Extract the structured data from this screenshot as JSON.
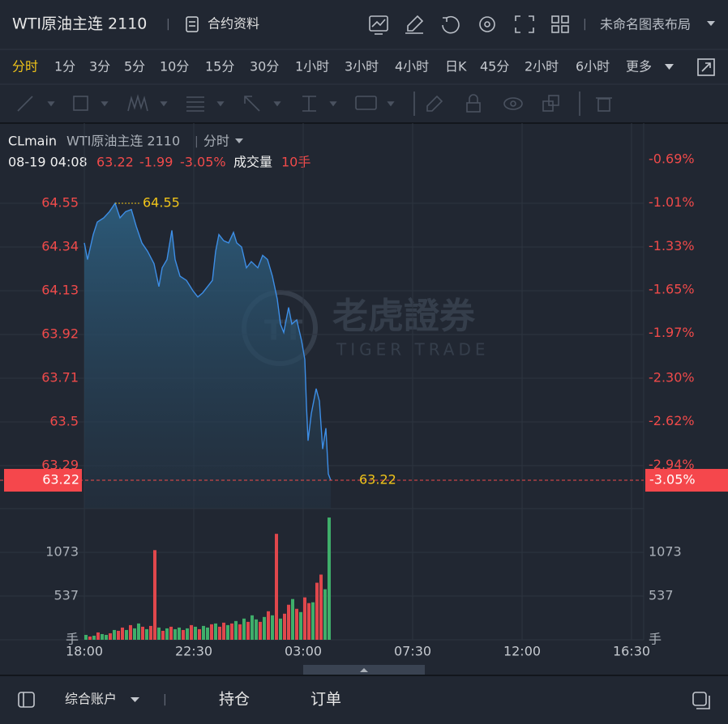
{
  "header": {
    "title": "WTI原油主连 2110",
    "contract_info": "合约资料",
    "layout": "未命名图表布局"
  },
  "timeframes": {
    "active": 0,
    "items": [
      "分时",
      "1分",
      "3分",
      "5分",
      "10分",
      "15分",
      "30分",
      "1小时",
      "3小时",
      "4小时",
      "日K",
      "45分",
      "2小时",
      "6小时",
      "更多"
    ]
  },
  "info": {
    "symbol": "CLmain",
    "name": "WTI原油主连 2110",
    "mode": "分时",
    "time": "08-19 04:08",
    "change": "-1.99",
    "volume_label": "成交量",
    "volume": "10手"
  },
  "watermark": {
    "cn": "老虎證券",
    "en": "TIGER TRADE"
  },
  "footer": {
    "account": "综合账户",
    "positions": "持仓",
    "orders": "订单"
  },
  "chart_data": {
    "type": "line",
    "x": [
      0,
      8,
      22,
      32,
      48,
      62,
      76,
      88,
      102,
      116,
      128,
      142,
      156,
      172,
      184,
      192,
      204,
      216,
      224,
      236,
      252,
      268,
      280,
      292,
      304,
      316,
      324,
      332,
      344,
      356,
      368,
      376,
      388,
      400,
      412,
      428,
      440,
      452,
      464,
      476,
      484,
      492,
      504,
      512,
      524,
      536,
      544,
      548,
      552,
      560,
      572,
      580,
      588,
      596,
      602,
      608
    ],
    "series": [
      {
        "color": "#3d8ee6",
        "values": [
          64.36,
          64.28,
          64.4,
          64.46,
          64.48,
          64.51,
          64.55,
          64.48,
          64.51,
          64.52,
          64.44,
          64.36,
          64.32,
          64.26,
          64.15,
          64.24,
          64.28,
          64.42,
          64.28,
          64.2,
          64.18,
          64.13,
          64.1,
          64.12,
          64.15,
          64.18,
          64.32,
          64.4,
          64.37,
          64.36,
          64.41,
          64.36,
          64.34,
          64.24,
          64.27,
          64.24,
          64.3,
          64.28,
          64.2,
          64.09,
          63.97,
          63.93,
          64.05,
          63.97,
          63.99,
          63.89,
          63.8,
          63.58,
          63.41,
          63.54,
          63.66,
          63.6,
          63.37,
          63.47,
          63.25,
          63.22
        ]
      }
    ],
    "xlim": [
      0,
      1380
    ],
    "xticks": [
      {
        "value": 0,
        "label": "18:00"
      },
      {
        "value": 270,
        "label": "22:30"
      },
      {
        "value": 540,
        "label": "03:00"
      },
      {
        "value": 810,
        "label": "07:30"
      },
      {
        "value": 1080,
        "label": "12:00"
      },
      {
        "value": 1350,
        "label": "16:30"
      }
    ],
    "ylim": [
      63.084,
      64.904
    ],
    "yticks": [
      64.55,
      64.34,
      64.13,
      63.92,
      63.71,
      63.5,
      {
        "value": 63.29,
        "label": "63.29"
      }
    ],
    "y2lim": [
      -3.26,
      -0.469
    ],
    "y2ticks": [
      {
        "value": -0.69,
        "label": "-0.69%"
      },
      {
        "value": -1.01,
        "label": "-1.01%"
      },
      {
        "value": -1.33,
        "label": "-1.33%"
      },
      {
        "value": -1.65,
        "label": "-1.65%"
      },
      {
        "value": -1.97,
        "label": "-1.97%"
      },
      {
        "value": -2.3,
        "label": "-2.30%"
      },
      {
        "value": -2.62,
        "label": "-2.62%"
      },
      {
        "value": -2.94,
        "label": "-2.94%"
      }
    ],
    "grid": true,
    "high": 64.55,
    "last": 63.22,
    "last_change": {
      "value": -3.05,
      "label": "-3.05%"
    },
    "volume": {
      "x": [
        0,
        10,
        20,
        30,
        40,
        50,
        60,
        70,
        80,
        90,
        100,
        110,
        120,
        130,
        140,
        150,
        160,
        170,
        180,
        190,
        200,
        210,
        220,
        230,
        240,
        250,
        260,
        270,
        280,
        290,
        300,
        310,
        320,
        330,
        340,
        350,
        360,
        370,
        380,
        390,
        400,
        410,
        420,
        430,
        440,
        450,
        460,
        470,
        480,
        490,
        500,
        510,
        520,
        530,
        540,
        550,
        560,
        570,
        580,
        590,
        600
      ],
      "values": [
        60,
        40,
        50,
        90,
        70,
        60,
        80,
        120,
        110,
        150,
        120,
        180,
        140,
        200,
        160,
        130,
        170,
        1100,
        150,
        110,
        140,
        160,
        130,
        150,
        120,
        140,
        180,
        160,
        130,
        170,
        150,
        190,
        200,
        160,
        210,
        180,
        200,
        230,
        190,
        260,
        220,
        300,
        250,
        220,
        280,
        350,
        300,
        1300,
        260,
        320,
        430,
        500,
        380,
        340,
        520,
        450,
        460,
        700,
        800,
        620,
        1500
      ],
      "colors": [
        "#3fae6a",
        "#e0474c",
        "#3fae6a",
        "#e0474c",
        "#3fae6a",
        "#3fae6a",
        "#e0474c",
        "#3fae6a",
        "#e0474c",
        "#e0474c",
        "#3fae6a",
        "#e0474c",
        "#3fae6a",
        "#3fae6a",
        "#e0474c",
        "#3fae6a",
        "#e0474c",
        "#e0474c",
        "#3fae6a",
        "#e0474c",
        "#3fae6a",
        "#e0474c",
        "#3fae6a",
        "#3fae6a",
        "#e0474c",
        "#3fae6a",
        "#e0474c",
        "#3fae6a",
        "#e0474c",
        "#3fae6a",
        "#3fae6a",
        "#e0474c",
        "#3fae6a",
        "#e0474c",
        "#e0474c",
        "#3fae6a",
        "#e0474c",
        "#3fae6a",
        "#e0474c",
        "#3fae6a",
        "#e0474c",
        "#3fae6a",
        "#3fae6a",
        "#e0474c",
        "#3fae6a",
        "#e0474c",
        "#3fae6a",
        "#e0474c",
        "#3fae6a",
        "#e0474c",
        "#e0474c",
        "#3fae6a",
        "#e0474c",
        "#3fae6a",
        "#e0474c",
        "#e0474c",
        "#3fae6a",
        "#e0474c",
        "#e0474c",
        "#3fae6a",
        "#3fae6a"
      ],
      "ylim": [
        0,
        1590
      ],
      "yticks": [
        {
          "value": 0,
          "label": "手"
        },
        537,
        1073
      ]
    }
  }
}
